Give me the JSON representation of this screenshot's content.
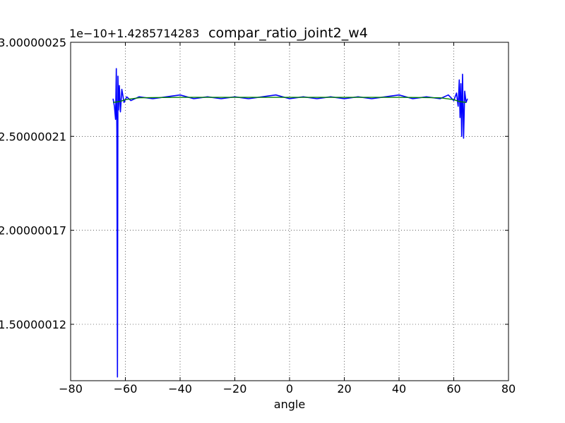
{
  "chart_data": {
    "type": "line",
    "title": "compar_ratio_joint2_w4",
    "offset_text": "1e−10+1.4285714283",
    "xlabel": "angle",
    "ylabel": "",
    "xlim": [
      -80,
      80
    ],
    "ylim": [
      1.2,
      3.0
    ],
    "grid": true,
    "x_ticks": [
      -80,
      -60,
      -40,
      -20,
      0,
      20,
      40,
      60,
      80
    ],
    "x_tick_labels": [
      "−80",
      "−60",
      "−40",
      "−20",
      "0",
      "20",
      "40",
      "60",
      "80"
    ],
    "y_ticks": [
      1.5,
      2.0,
      2.5,
      3.0
    ],
    "y_tick_labels": [
      "1.50000012",
      "2.00000017",
      "2.50000021",
      "3.00000025"
    ],
    "colors": {
      "blue": "#0000ff",
      "green": "#008000"
    },
    "series": [
      {
        "color": "#0000ff",
        "x": [
          -64.5,
          -64.0,
          -63.6,
          -63.3,
          -63.1,
          -62.9,
          -62.7,
          -62.5,
          -62.2,
          -61.8,
          -61.3,
          -60.5,
          -59.5,
          -58,
          -55,
          -50,
          -45,
          -40,
          -35,
          -30,
          -25,
          -20,
          -15,
          -10,
          -5,
          0,
          5,
          10,
          15,
          20,
          25,
          30,
          35,
          40,
          45,
          50,
          55,
          58,
          60,
          61,
          61.6,
          62.0,
          62.3,
          62.6,
          62.9,
          63.2,
          63.6,
          64.0,
          64.5,
          65.0
        ],
        "y": [
          2.7,
          2.66,
          2.59,
          2.86,
          2.52,
          1.22,
          2.82,
          2.64,
          2.77,
          2.63,
          2.75,
          2.68,
          2.71,
          2.69,
          2.71,
          2.7,
          2.71,
          2.72,
          2.7,
          2.71,
          2.7,
          2.71,
          2.7,
          2.71,
          2.72,
          2.7,
          2.71,
          2.7,
          2.71,
          2.7,
          2.71,
          2.7,
          2.71,
          2.72,
          2.7,
          2.71,
          2.7,
          2.72,
          2.69,
          2.73,
          2.66,
          2.8,
          2.6,
          2.78,
          2.5,
          2.83,
          2.49,
          2.74,
          2.68,
          2.7
        ]
      },
      {
        "color": "#008000",
        "x": [
          -64.5,
          -62,
          -60,
          -55,
          -50,
          -40,
          -30,
          -20,
          -10,
          0,
          10,
          20,
          30,
          40,
          50,
          55,
          60,
          62,
          64.5
        ],
        "y": [
          2.68,
          2.685,
          2.695,
          2.705,
          2.706,
          2.707,
          2.707,
          2.707,
          2.707,
          2.707,
          2.707,
          2.707,
          2.707,
          2.707,
          2.706,
          2.705,
          2.695,
          2.685,
          2.68
        ]
      }
    ]
  }
}
